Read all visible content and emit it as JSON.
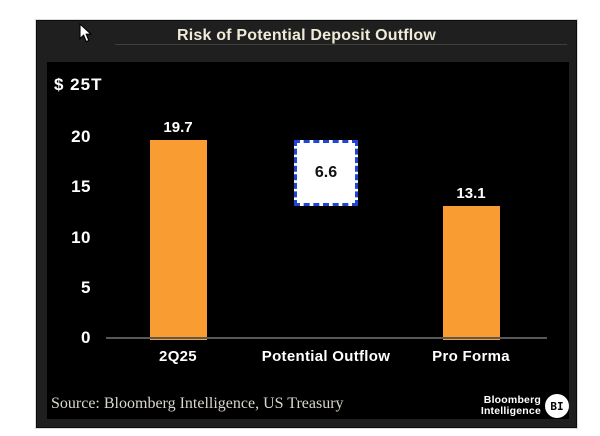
{
  "header": {
    "title": "Risk of Potential Deposit Outflow"
  },
  "chart_data": {
    "type": "bar",
    "title": "Risk of Potential Deposit Outflow",
    "unit_label": "$ 25T",
    "ylabel": "",
    "xlabel": "",
    "ylim": [
      0,
      25
    ],
    "y_ticks": [
      20,
      15,
      10,
      5,
      0
    ],
    "grid": false,
    "legend": false,
    "categories": [
      "2Q25",
      "Potential Outflow",
      "Pro Forma"
    ],
    "values": [
      19.7,
      6.6,
      13.1
    ],
    "styles": [
      "bar",
      "floating-box",
      "bar"
    ],
    "floating_box": {
      "category": "Potential Outflow",
      "value": 6.6,
      "bottom": 13.1,
      "top": 19.7
    },
    "bar_color": "#f99d33",
    "box_border_color": "#2144d2",
    "background_color": "#000000"
  },
  "footer": {
    "source": "Source: Bloomberg Intelligence, US Treasury",
    "logo": {
      "line1": "Bloomberg",
      "line2": "Intelligence",
      "badge": "BI"
    }
  },
  "icons": {
    "cursor": "arrow-pointer"
  },
  "colors": {
    "window_background": "#1f1f1f",
    "plot_background": "#000000",
    "bar_orange": "#f99d33",
    "selection_blue": "#2144d2",
    "title_text": "#f0ebd8",
    "axis_line": "#585858"
  }
}
